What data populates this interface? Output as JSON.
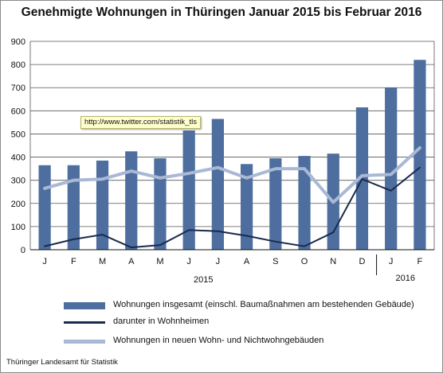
{
  "chart_data": {
    "type": "bar",
    "title": "Genehmigte Wohnungen in Thüringen Januar 2015 bis Februar 2016",
    "categories": [
      "J",
      "F",
      "M",
      "A",
      "M",
      "J",
      "J",
      "A",
      "S",
      "O",
      "N",
      "D",
      "J",
      "F"
    ],
    "year_labels": [
      "2015",
      "2016"
    ],
    "ylim": [
      0,
      900
    ],
    "yticks": [
      0,
      100,
      200,
      300,
      400,
      500,
      600,
      700,
      800,
      900
    ],
    "grid": true,
    "legend_position": "bottom",
    "series": [
      {
        "name": "Wohnungen insgesamt (einschl. Baumaßnahmen am bestehenden Gebäude)",
        "kind": "bar",
        "color": "#4d6e9e",
        "values": [
          365,
          365,
          385,
          425,
          395,
          515,
          565,
          370,
          395,
          405,
          415,
          615,
          700,
          820
        ]
      },
      {
        "name": "darunter in Wohnheimen",
        "kind": "line",
        "color": "#1a2a4d",
        "values": [
          15,
          45,
          65,
          10,
          20,
          85,
          80,
          60,
          35,
          15,
          75,
          305,
          255,
          355
        ]
      },
      {
        "name": "Wohnungen in neuen Wohn- und Nichtwohngebäuden",
        "kind": "line",
        "color": "#a9b8d4",
        "values": [
          265,
          300,
          305,
          340,
          310,
          330,
          355,
          310,
          350,
          350,
          205,
          320,
          325,
          440
        ]
      }
    ]
  },
  "tooltip": "http://www.twitter.com/statistik_tls",
  "source": "Thüringer Landesamt für Statistik"
}
